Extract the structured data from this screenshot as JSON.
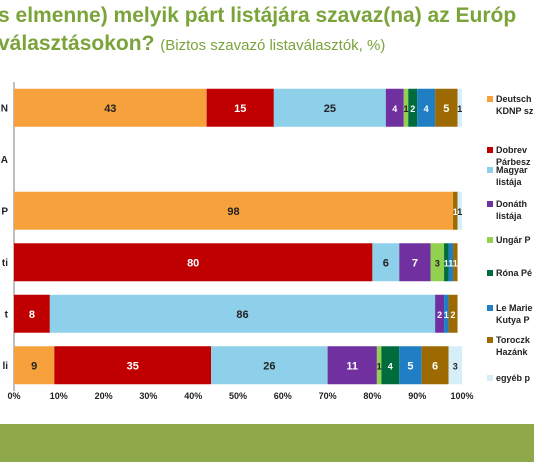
{
  "title": {
    "line1": "s elmenne) melyik párt listájára szavaz(na) az Európ",
    "line2_main": "választásokon?",
    "line2_sub": "(Biztos szavazó listaválasztók, %)"
  },
  "chart_data": {
    "type": "bar",
    "orientation": "horizontal",
    "stacked": true,
    "categories": [
      "N",
      "A",
      "P",
      "ti",
      "t",
      "li"
    ],
    "series": [
      {
        "name": "Deutsch\nKDNP sz",
        "color": "#f7a13c",
        "values": [
          43,
          null,
          98,
          null,
          null,
          9
        ]
      },
      {
        "name": "Dobrev\nPárbesz",
        "color": "#c00000",
        "values": [
          15,
          null,
          null,
          80,
          8,
          35
        ]
      },
      {
        "name": "Magyar\nlistája",
        "color": "#8ecfea",
        "values": [
          25,
          null,
          null,
          6,
          86,
          26
        ]
      },
      {
        "name": "Donáth\nlistája",
        "color": "#7030a0",
        "values": [
          4,
          null,
          null,
          7,
          2,
          11
        ]
      },
      {
        "name": "Ungár P",
        "color": "#92d050",
        "values": [
          1,
          null,
          null,
          3,
          null,
          1
        ]
      },
      {
        "name": "Róna Pé",
        "color": "#006b3c",
        "values": [
          2,
          null,
          null,
          1,
          null,
          4
        ]
      },
      {
        "name": "Le Marie\nKutya P",
        "color": "#1f7ec4",
        "values": [
          4,
          null,
          null,
          1,
          1,
          5
        ]
      },
      {
        "name": "Toroczk\nHazánk",
        "color": "#9c6a00",
        "values": [
          5,
          null,
          1,
          1,
          2,
          6
        ]
      },
      {
        "name": "egyéb p",
        "color": "#d6eef8",
        "values": [
          1,
          null,
          1,
          null,
          null,
          3
        ]
      }
    ],
    "value_labels": [
      [
        "43",
        "15",
        "25",
        "4",
        "1",
        "2",
        "4",
        "5",
        "1"
      ],
      [],
      [
        "98",
        "1",
        "1"
      ],
      [
        "80",
        "6",
        "7",
        "3",
        "1",
        "1",
        "1",
        "1"
      ],
      [
        "8",
        "86",
        "2",
        "1",
        "2"
      ],
      [
        "9",
        "35",
        "26",
        "11",
        "1",
        "4",
        "5",
        "6",
        "3"
      ]
    ],
    "xlim": [
      0,
      100
    ],
    "xticks": [
      "0%",
      "10%",
      "20%",
      "30%",
      "40%",
      "50%",
      "60%",
      "70%",
      "80%",
      "90%",
      "100%"
    ],
    "legend": "right"
  }
}
